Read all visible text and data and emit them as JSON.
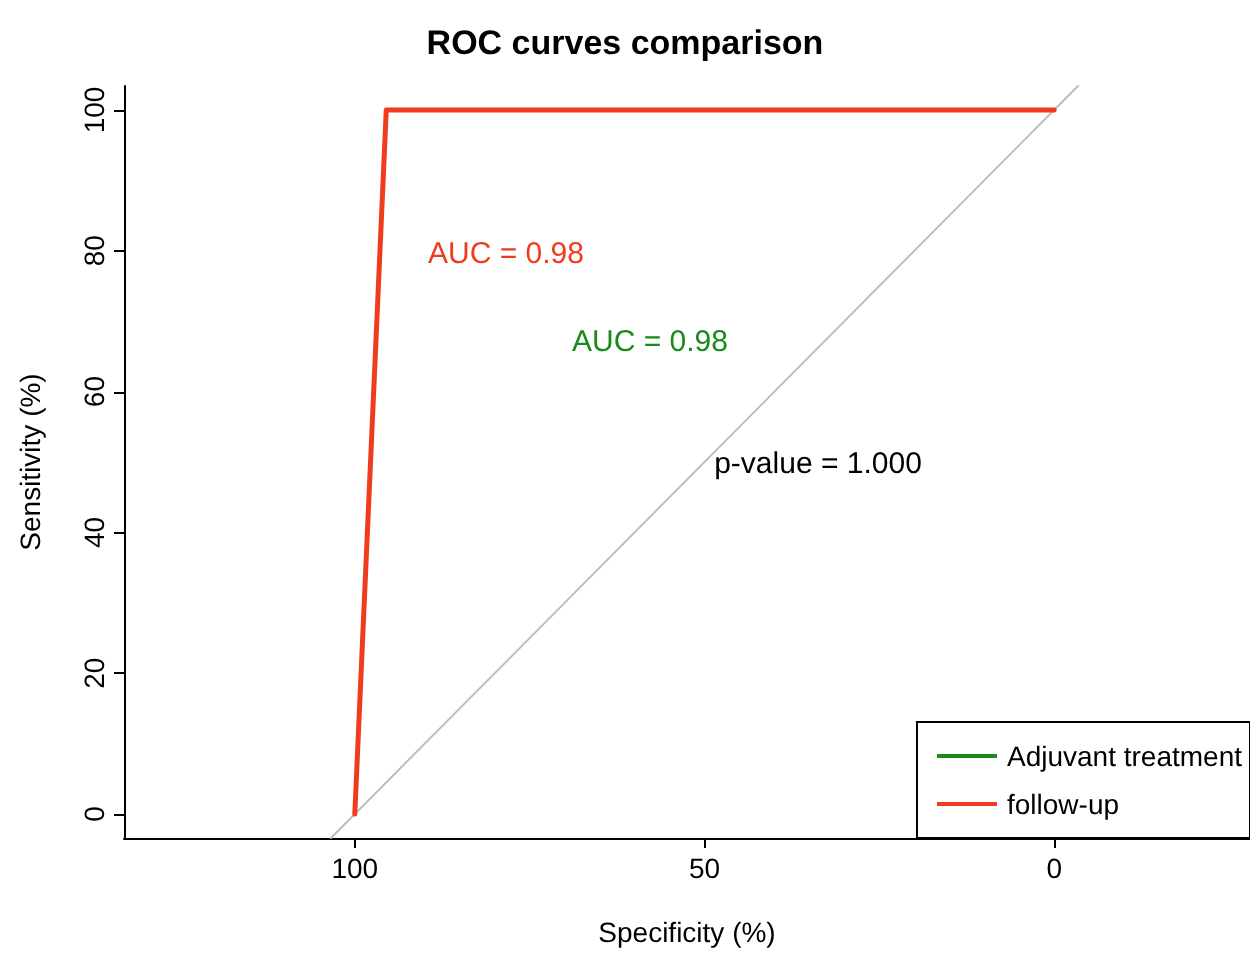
{
  "chart_data": {
    "type": "line",
    "title": "ROC curves comparison",
    "xlabel": "Specificity (%)",
    "ylabel": "Sensitivity (%)",
    "xlim": [
      133,
      -28
    ],
    "ylim": [
      -3.4,
      103.4
    ],
    "xticks": [
      100,
      50,
      0
    ],
    "yticks": [
      0,
      20,
      40,
      60,
      80,
      100
    ],
    "series": [
      {
        "name": "Adjuvant treatment",
        "color": "#1a8a1a",
        "values": [
          null,
          null,
          null
        ]
      },
      {
        "name": "follow-up",
        "color": "#f03c1e",
        "x": [
          100,
          95.5,
          0
        ],
        "values": [
          0,
          100,
          100
        ]
      },
      {
        "color": "#bebebe",
        "x": [
          103.4,
          -3.4
        ],
        "values": [
          -3.4,
          103.4
        ]
      }
    ],
    "annotations": [
      "AUC = 0.98",
      "AUC = 0.98",
      "p-value = 1.000"
    ],
    "legend": "bottom right",
    "grid": false,
    "marker": "none",
    "line_style": "solid"
  }
}
